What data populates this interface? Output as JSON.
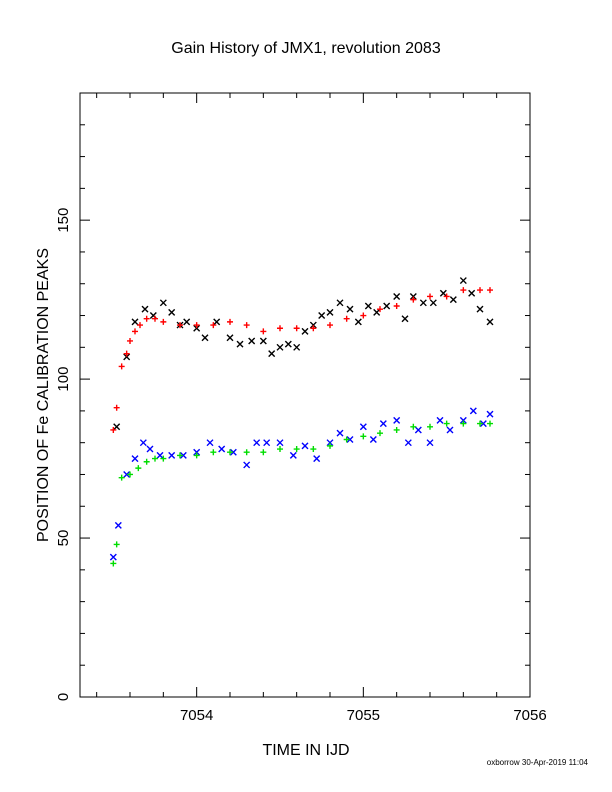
{
  "chart_data": {
    "type": "scatter",
    "title": "Gain History of JMX1, revolution 2083",
    "xlabel": "TIME IN IJD",
    "ylabel": "POSITION OF Fe CALIBRATION PEAKS",
    "xlim": [
      7053.3,
      7056.0
    ],
    "ylim": [
      0,
      190
    ],
    "xticks": [
      7054,
      7055,
      7056
    ],
    "xtick_labels": [
      "7054",
      "7055",
      "7056"
    ],
    "yticks": [
      0,
      50,
      100,
      150
    ],
    "ytick_labels": [
      "0",
      "50",
      "100",
      "150"
    ],
    "grid": false,
    "series": [
      {
        "color": "#000000",
        "marker": "x",
        "x": [
          7053.52,
          7053.58,
          7053.63,
          7053.69,
          7053.74,
          7053.8,
          7053.85,
          7053.9,
          7053.94,
          7054.0,
          7054.05,
          7054.12,
          7054.2,
          7054.26,
          7054.33,
          7054.4,
          7054.45,
          7054.5,
          7054.55,
          7054.6,
          7054.65,
          7054.7,
          7054.75,
          7054.8,
          7054.86,
          7054.92,
          7054.97,
          7055.03,
          7055.08,
          7055.14,
          7055.2,
          7055.25,
          7055.3,
          7055.36,
          7055.42,
          7055.48,
          7055.54,
          7055.6,
          7055.65,
          7055.7,
          7055.76
        ],
        "y": [
          85,
          107,
          118,
          122,
          120,
          124,
          121,
          117,
          118,
          116,
          113,
          118,
          113,
          111,
          112,
          112,
          108,
          110,
          111,
          110,
          115,
          117,
          120,
          121,
          124,
          122,
          118,
          123,
          121,
          123,
          126,
          119,
          126,
          124,
          124,
          127,
          125,
          131,
          127,
          122,
          118
        ]
      },
      {
        "color": "#ff0000",
        "marker": "+",
        "x": [
          7053.5,
          7053.52,
          7053.55,
          7053.58,
          7053.6,
          7053.63,
          7053.66,
          7053.7,
          7053.75,
          7053.8,
          7053.9,
          7054.0,
          7054.1,
          7054.2,
          7054.3,
          7054.4,
          7054.5,
          7054.6,
          7054.7,
          7054.8,
          7054.9,
          7055.0,
          7055.1,
          7055.2,
          7055.3,
          7055.4,
          7055.5,
          7055.6,
          7055.7,
          7055.76
        ],
        "y": [
          84,
          91,
          104,
          108,
          112,
          115,
          117,
          119,
          119,
          118,
          117,
          117,
          117,
          118,
          117,
          115,
          116,
          116,
          116,
          117,
          119,
          120,
          122,
          123,
          125,
          126,
          126,
          128,
          128,
          128
        ]
      },
      {
        "color": "#0000ff",
        "marker": "x",
        "x": [
          7053.5,
          7053.53,
          7053.58,
          7053.63,
          7053.68,
          7053.72,
          7053.78,
          7053.85,
          7053.92,
          7054.0,
          7054.08,
          7054.15,
          7054.22,
          7054.3,
          7054.36,
          7054.42,
          7054.5,
          7054.58,
          7054.65,
          7054.72,
          7054.8,
          7054.86,
          7054.92,
          7055.0,
          7055.06,
          7055.12,
          7055.2,
          7055.27,
          7055.33,
          7055.4,
          7055.46,
          7055.52,
          7055.6,
          7055.66,
          7055.72,
          7055.76
        ],
        "y": [
          44,
          54,
          70,
          75,
          80,
          78,
          76,
          76,
          76,
          77,
          80,
          78,
          77,
          73,
          80,
          80,
          80,
          76,
          79,
          75,
          80,
          83,
          81,
          85,
          81,
          86,
          87,
          80,
          84,
          80,
          87,
          84,
          87,
          90,
          86,
          89
        ]
      },
      {
        "color": "#00dd00",
        "marker": "+",
        "x": [
          7053.5,
          7053.52,
          7053.55,
          7053.6,
          7053.65,
          7053.7,
          7053.75,
          7053.8,
          7053.9,
          7054.0,
          7054.1,
          7054.2,
          7054.3,
          7054.4,
          7054.5,
          7054.6,
          7054.7,
          7054.8,
          7054.9,
          7055.0,
          7055.1,
          7055.2,
          7055.3,
          7055.4,
          7055.5,
          7055.6,
          7055.7,
          7055.76
        ],
        "y": [
          42,
          48,
          69,
          70,
          72,
          74,
          75,
          75,
          76,
          76,
          77,
          77,
          77,
          77,
          78,
          78,
          78,
          79,
          81,
          82,
          83,
          84,
          85,
          85,
          86,
          86,
          86,
          86
        ]
      }
    ]
  },
  "footer": "oxborrow 30-Apr-2019 11:04"
}
